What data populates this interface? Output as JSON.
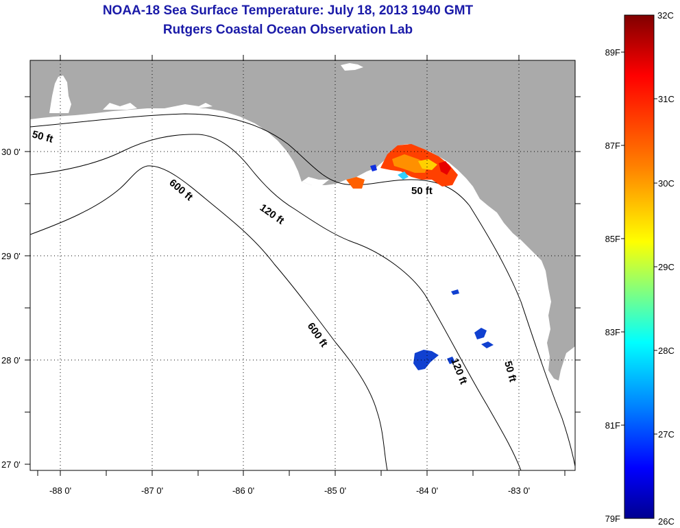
{
  "title": {
    "line1": "NOAA-18 Sea Surface Temperature:  July 18, 2013 1940 GMT",
    "line2": "Rutgers Coastal Ocean Observation Lab"
  },
  "map": {
    "x_ticks": [
      "-88 0'",
      "-87 0'",
      "-86 0'",
      "-85 0'",
      "-84 0'",
      "-83 0'"
    ],
    "y_ticks": [
      "30 0'",
      "29 0'",
      "28 0'",
      "27 0'"
    ],
    "contour_labels": {
      "c50_west": "50 ft",
      "c50_east": "50 ft",
      "c50_south": "50 ft",
      "c120_north": "120 ft",
      "c120_south": "120 ft",
      "c600_north": "600 ft",
      "c600_south": "600 ft"
    },
    "colors": {
      "land": "#aaaaaa",
      "water": "#ffffff",
      "grid": "#000000"
    }
  },
  "colorbar": {
    "celsius_labels": [
      "32C",
      "31C",
      "30C",
      "29C",
      "28C",
      "27C",
      "26C"
    ],
    "fahrenheit_labels": [
      "89F",
      "87F",
      "85F",
      "83F",
      "81F",
      "79F"
    ],
    "gradient_stops": [
      "#800000",
      "#ff0000",
      "#ff8000",
      "#ffff00",
      "#80ff80",
      "#00ffff",
      "#0080ff",
      "#0000ff",
      "#000090"
    ]
  }
}
